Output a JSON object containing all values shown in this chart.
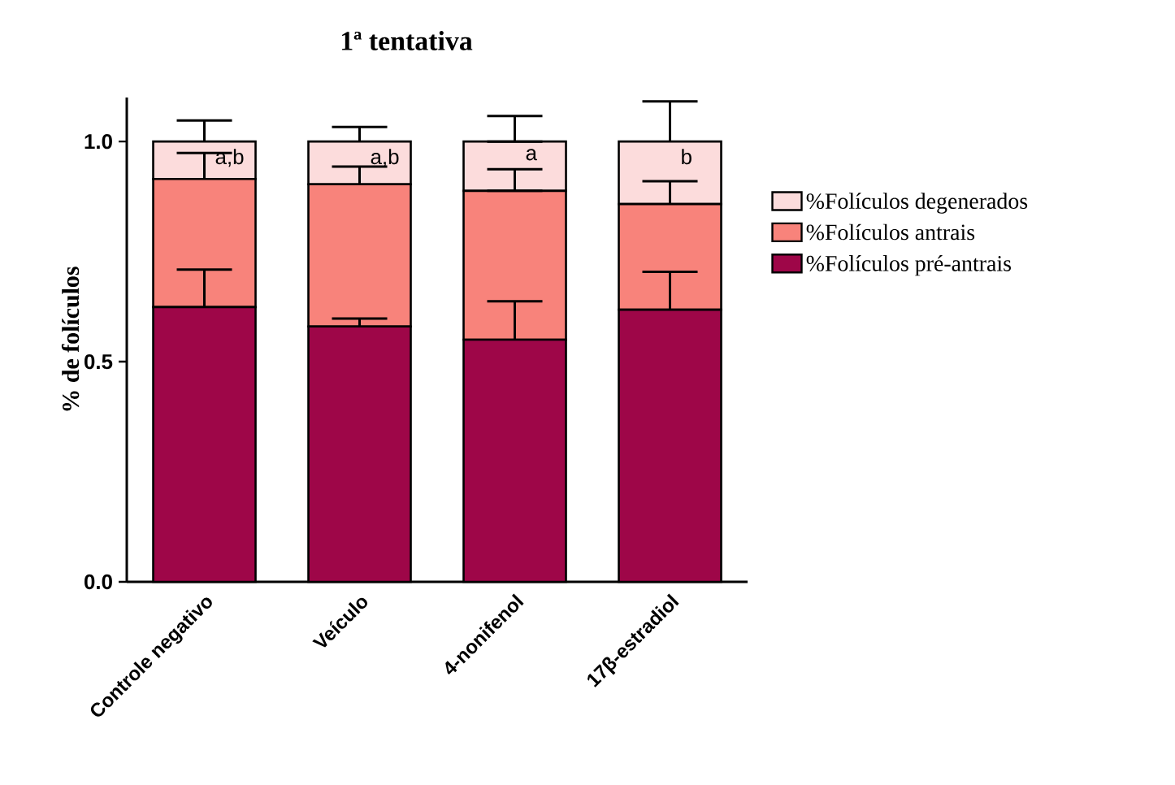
{
  "chart_data": {
    "type": "bar",
    "stacked": true,
    "title": "1ª tentativa",
    "ylabel": "% de folículos",
    "categories": [
      "Controle negativo",
      "Veículo",
      "4-nonifenol",
      "17β-estradiol"
    ],
    "series": [
      {
        "name": "%Folículos pré-antrais",
        "color": "#9e0648",
        "values": [
          0.624,
          0.58,
          0.55,
          0.618
        ],
        "errors": [
          [
            0.624,
            0.709
          ],
          [
            0.58,
            0.598
          ],
          [
            0.55,
            0.637
          ],
          [
            0.618,
            0.704
          ]
        ]
      },
      {
        "name": "%Folículos antrais",
        "color": "#f8837b",
        "values": [
          0.291,
          0.323,
          0.338,
          0.24
        ],
        "errors": [
          [
            0.915,
            0.974
          ],
          [
            0.903,
            0.943
          ],
          [
            0.888,
            0.937
          ],
          [
            0.858,
            0.91
          ]
        ]
      },
      {
        "name": "%Folículos degenerados",
        "color": "#fcdcdc",
        "values": [
          0.085,
          0.097,
          0.112,
          0.142
        ],
        "errors": [
          [
            1.0,
            1.048
          ],
          [
            1.0,
            1.033
          ],
          [
            1.0,
            1.058
          ],
          [
            1.0,
            1.091
          ]
        ]
      }
    ],
    "ylim": [
      0,
      1.1
    ],
    "yticks": [
      {
        "value": 0,
        "label": "0.0"
      },
      {
        "value": 0.5,
        "label": "0.5"
      },
      {
        "value": 1.0,
        "label": "1.0"
      }
    ],
    "legend": "right",
    "grid": false,
    "annotations": [
      "a,b",
      "a,b",
      "a",
      "b"
    ]
  }
}
